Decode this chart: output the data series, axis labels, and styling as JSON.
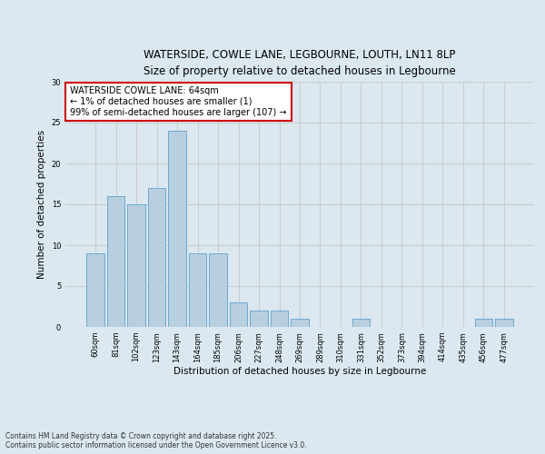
{
  "title_line1": "WATERSIDE, COWLE LANE, LEGBOURNE, LOUTH, LN11 8LP",
  "title_line2": "Size of property relative to detached houses in Legbourne",
  "xlabel": "Distribution of detached houses by size in Legbourne",
  "ylabel": "Number of detached properties",
  "categories": [
    "60sqm",
    "81sqm",
    "102sqm",
    "123sqm",
    "143sqm",
    "164sqm",
    "185sqm",
    "206sqm",
    "227sqm",
    "248sqm",
    "269sqm",
    "289sqm",
    "310sqm",
    "331sqm",
    "352sqm",
    "373sqm",
    "394sqm",
    "414sqm",
    "435sqm",
    "456sqm",
    "477sqm"
  ],
  "values": [
    9,
    16,
    15,
    17,
    24,
    9,
    9,
    3,
    2,
    2,
    1,
    0,
    0,
    1,
    0,
    0,
    0,
    0,
    0,
    1,
    1
  ],
  "bar_color": "#b8cfe0",
  "bar_edge_color": "#6aaad4",
  "annotation_box_text": "WATERSIDE COWLE LANE: 64sqm\n← 1% of detached houses are smaller (1)\n99% of semi-detached houses are larger (107) →",
  "annotation_box_color": "#ffffff",
  "annotation_box_edge_color": "#cc0000",
  "ylim": [
    0,
    30
  ],
  "yticks": [
    0,
    5,
    10,
    15,
    20,
    25,
    30
  ],
  "grid_color": "#cccccc",
  "bg_color": "#dce8f0",
  "fig_color": "#dce8f0",
  "footer_line1": "Contains HM Land Registry data © Crown copyright and database right 2025.",
  "footer_line2": "Contains public sector information licensed under the Open Government Licence v3.0."
}
